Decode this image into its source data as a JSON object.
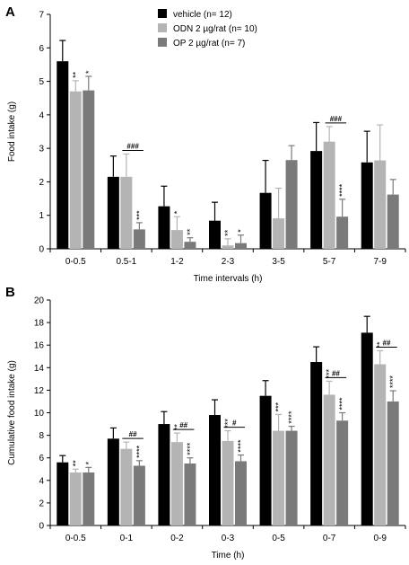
{
  "chart_data": [
    {
      "panel_label": "A",
      "type": "bar",
      "xlabel": "Time intervals (h)",
      "ylabel": "Food intake (g)",
      "ylim": [
        0,
        7
      ],
      "yticks": [
        "0",
        "1",
        "2",
        "3",
        "4",
        "5",
        "6",
        "7"
      ],
      "categories": [
        "0-0.5",
        "0.5-1",
        "1-2",
        "2-3",
        "3-5",
        "5-7",
        "7-9"
      ],
      "legend": {
        "placement": "top-center"
      },
      "series": [
        {
          "name": "vehicle (n= 12)",
          "color": "#000000",
          "values": [
            5.6,
            2.15,
            1.27,
            0.84,
            1.67,
            2.92,
            2.58
          ],
          "errors": [
            0.62,
            0.62,
            0.6,
            0.55,
            0.97,
            0.85,
            0.93
          ]
        },
        {
          "name": "ODN 2 µg/rat (n= 10)",
          "color": "#b4b4b4",
          "values": [
            4.7,
            2.15,
            0.56,
            0.1,
            0.91,
            3.2,
            2.64
          ],
          "errors": [
            0.32,
            0.68,
            0.4,
            0.2,
            0.9,
            0.45,
            1.06
          ]
        },
        {
          "name": "OP 2 µg/rat (n= 7)",
          "color": "#7a7a7a",
          "values": [
            4.73,
            0.58,
            0.21,
            0.17,
            2.65,
            0.96,
            1.62
          ],
          "errors": [
            0.42,
            0.2,
            0.12,
            0.24,
            0.43,
            0.52,
            0.45
          ]
        }
      ],
      "significance_stars": [
        {
          "category": 0,
          "series": 1,
          "text": "**"
        },
        {
          "category": 0,
          "series": 2,
          "text": "*"
        },
        {
          "category": 1,
          "series": 2,
          "text": "***"
        },
        {
          "category": 2,
          "series": 1,
          "text": "*"
        },
        {
          "category": 2,
          "series": 2,
          "text": "**"
        },
        {
          "category": 3,
          "series": 1,
          "text": "**"
        },
        {
          "category": 3,
          "series": 2,
          "text": "*"
        },
        {
          "category": 5,
          "series": 2,
          "text": "****"
        }
      ],
      "comparison_marks": [
        {
          "category": 1,
          "text": "###"
        },
        {
          "category": 5,
          "text": "###"
        }
      ]
    },
    {
      "panel_label": "B",
      "type": "bar",
      "xlabel": "Time (h)",
      "ylabel": "Cumulative food intake (g)",
      "ylim": [
        0,
        20
      ],
      "yticks": [
        "0",
        "2",
        "4",
        "6",
        "8",
        "10",
        "12",
        "14",
        "16",
        "18",
        "20"
      ],
      "categories": [
        "0-0.5",
        "0-1",
        "0-2",
        "0-3",
        "0-5",
        "0-7",
        "0-9"
      ],
      "series": [
        {
          "name": "vehicle (n= 12)",
          "color": "#000000",
          "values": [
            5.6,
            7.7,
            9.0,
            9.8,
            11.5,
            14.5,
            17.1
          ],
          "errors": [
            0.6,
            0.95,
            1.1,
            1.35,
            1.35,
            1.35,
            1.45
          ]
        },
        {
          "name": "ODN 2 µg/rat (n= 10)",
          "color": "#b4b4b4",
          "values": [
            4.7,
            6.8,
            7.4,
            7.5,
            8.4,
            11.6,
            14.3
          ],
          "errors": [
            0.3,
            0.6,
            0.8,
            0.9,
            1.45,
            1.2,
            1.2
          ]
        },
        {
          "name": "OP 2 µg/rat (n= 7)",
          "color": "#7a7a7a",
          "values": [
            4.7,
            5.3,
            5.5,
            5.7,
            8.4,
            9.3,
            11.0
          ],
          "errors": [
            0.45,
            0.45,
            0.5,
            0.55,
            0.4,
            0.7,
            0.95
          ]
        }
      ],
      "significance_stars": [
        {
          "category": 0,
          "series": 1,
          "text": "**"
        },
        {
          "category": 0,
          "series": 2,
          "text": "*"
        },
        {
          "category": 1,
          "series": 2,
          "text": "****"
        },
        {
          "category": 2,
          "series": 1,
          "text": "**"
        },
        {
          "category": 2,
          "series": 2,
          "text": "****"
        },
        {
          "category": 3,
          "series": 1,
          "text": "***"
        },
        {
          "category": 3,
          "series": 2,
          "text": "****"
        },
        {
          "category": 4,
          "series": 1,
          "text": "***"
        },
        {
          "category": 4,
          "series": 2,
          "text": "****"
        },
        {
          "category": 5,
          "series": 1,
          "text": "***"
        },
        {
          "category": 5,
          "series": 2,
          "text": "****"
        },
        {
          "category": 6,
          "series": 1,
          "text": "**"
        },
        {
          "category": 6,
          "series": 2,
          "text": "****"
        }
      ],
      "comparison_marks": [
        {
          "category": 1,
          "text": "##"
        },
        {
          "category": 2,
          "text": "##"
        },
        {
          "category": 3,
          "text": "#"
        },
        {
          "category": 5,
          "text": "##"
        },
        {
          "category": 6,
          "text": "##"
        }
      ]
    }
  ]
}
